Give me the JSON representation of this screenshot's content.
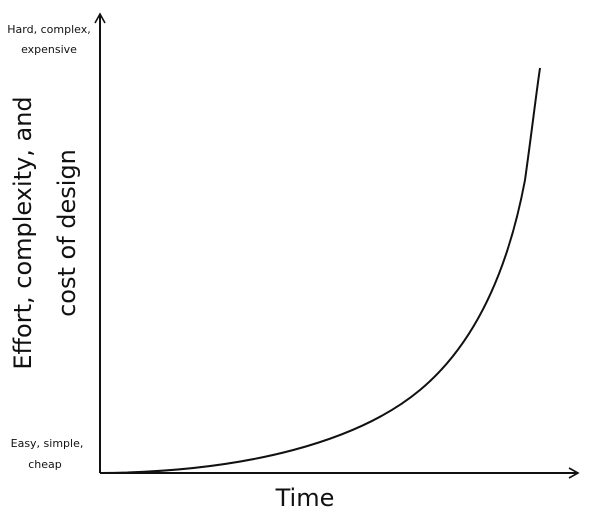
{
  "y_axis": {
    "label_lines": [
      "Effort, complexity, and",
      "cost of design"
    ],
    "top_label_lines": [
      "Hard, complex,",
      "expensive"
    ],
    "bottom_label_lines": [
      "Easy, simple,",
      "cheap"
    ]
  },
  "x_axis": {
    "label": "Time"
  }
}
